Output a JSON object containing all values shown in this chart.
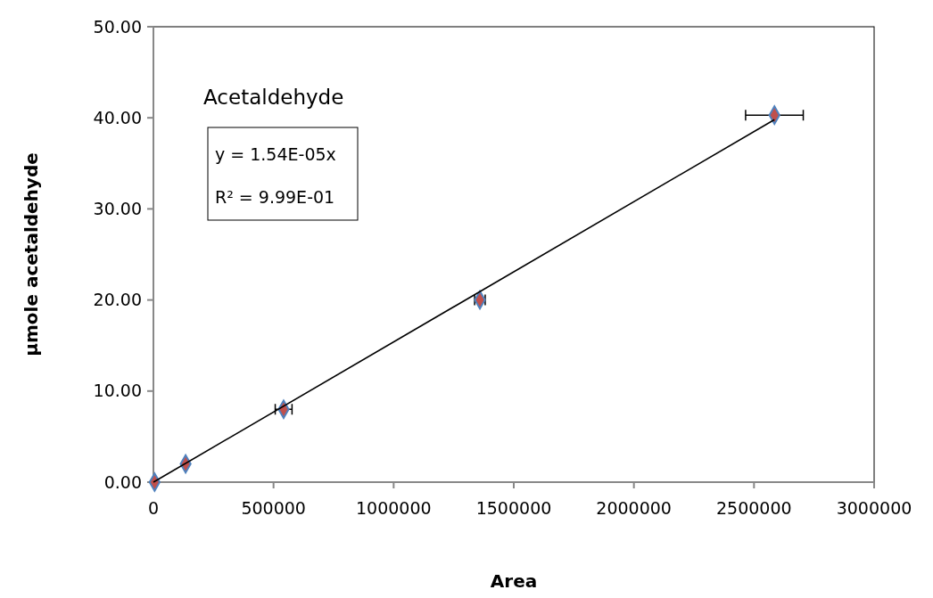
{
  "chart_data": {
    "type": "scatter",
    "title": "Acetaldehyde",
    "xlabel": "Area",
    "ylabel": "µmole acetaldehyde",
    "annotations": [
      "y = 1.54E-05x",
      "R² = 9.99E-01"
    ],
    "xlim": [
      0,
      3000000
    ],
    "xticks": [
      0,
      500000,
      1000000,
      1500000,
      2000000,
      2500000,
      3000000
    ],
    "ylim": [
      0,
      50
    ],
    "yticks": [
      {
        "value": 0,
        "label": "0.00"
      },
      {
        "value": 10,
        "label": "10.00"
      },
      {
        "value": 20,
        "label": "20.00"
      },
      {
        "value": 30,
        "label": "30.00"
      },
      {
        "value": 40,
        "label": "40.00"
      },
      {
        "value": 50,
        "label": "50.00"
      }
    ],
    "grid": false,
    "marker": "diamond",
    "series": [
      {
        "color": "#c0504d",
        "x": [
          5000,
          134000,
          542000,
          1359000,
          2585000
        ],
        "values": [
          0,
          2,
          8,
          20,
          40.3
        ],
        "xerrors": [
          null,
          null,
          35000,
          22000,
          120000
        ]
      },
      {
        "type": "line",
        "color": "#000000",
        "x": [
          0,
          2585000
        ],
        "values": [
          0,
          39.8
        ],
        "line_style": "solid",
        "marker": "none"
      }
    ]
  }
}
